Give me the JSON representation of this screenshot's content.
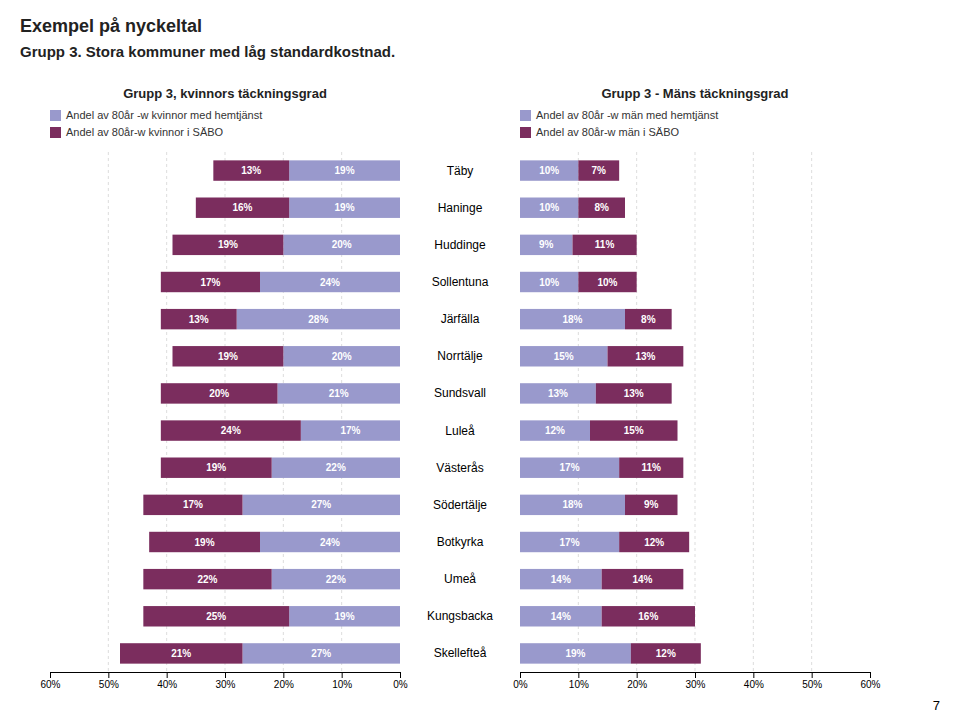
{
  "title": "Exempel på nyckeltal",
  "subtitle": "Grupp 3. Stora kommuner med låg standardkostnad.",
  "annotations": [
    "7"
  ],
  "chart_data": [
    {
      "type": "bar",
      "orientation": "horizontal",
      "stacked": true,
      "data_labels": true,
      "grid": true,
      "title": "Grupp 3, kvinnors täckningsgrad",
      "categories": [
        "Täby",
        "Haninge",
        "Huddinge",
        "Sollentuna",
        "Järfälla",
        "Norrtälje",
        "Sundsvall",
        "Luleå",
        "Västerås",
        "Södertälje",
        "Botkyrka",
        "Umeå",
        "Kungsbacka",
        "Skellefteå"
      ],
      "series": [
        {
          "name": "Andel av 80år -w kvinnor med hemtjänst",
          "color": "#9999cc",
          "values": [
            19,
            19,
            20,
            24,
            28,
            20,
            21,
            17,
            22,
            27,
            24,
            22,
            19,
            27
          ],
          "value_labels": [
            "19%",
            "19%",
            "20%",
            "24%",
            "28%",
            "20%",
            "21%",
            "17%",
            "22%",
            "27%",
            "24%",
            "22%",
            "19%",
            "27%"
          ]
        },
        {
          "name": "Andel av 80år-w  kvinnor i SÄBO",
          "color": "#7b2d5e",
          "values": [
            13,
            16,
            19,
            17,
            13,
            19,
            20,
            24,
            19,
            17,
            19,
            22,
            25,
            21
          ],
          "value_labels": [
            "13%",
            "16%",
            "19%",
            "17%",
            "13%",
            "19%",
            "20%",
            "24%",
            "19%",
            "17%",
            "19%",
            "22%",
            "25%",
            "21%"
          ]
        }
      ],
      "xlim": [
        60,
        0
      ],
      "xticks": [
        {
          "value": 0,
          "label": "0%"
        },
        {
          "value": 10,
          "label": "10%"
        },
        {
          "value": 20,
          "label": "20%"
        },
        {
          "value": 30,
          "label": "30%"
        },
        {
          "value": 40,
          "label": "40%"
        },
        {
          "value": 50,
          "label": "50%"
        },
        {
          "value": 60,
          "label": "60%"
        }
      ]
    },
    {
      "type": "bar",
      "orientation": "horizontal",
      "stacked": true,
      "data_labels": true,
      "grid": true,
      "title": "Grupp 3 -  Mäns täckningsgrad",
      "categories": [
        "Täby",
        "Haninge",
        "Huddinge",
        "Sollentuna",
        "Järfälla",
        "Norrtälje",
        "Sundsvall",
        "Luleå",
        "Västerås",
        "Södertälje",
        "Botkyrka",
        "Umeå",
        "Kungsbacka",
        "Skellefteå"
      ],
      "series": [
        {
          "name": "Andel av 80år -w män med hemtjänst",
          "color": "#9999cc",
          "values": [
            10,
            10,
            9,
            10,
            18,
            15,
            13,
            12,
            17,
            18,
            17,
            14,
            14,
            19
          ],
          "value_labels": [
            "10%",
            "10%",
            "9%",
            "10%",
            "18%",
            "15%",
            "13%",
            "12%",
            "17%",
            "18%",
            "17%",
            "14%",
            "14%",
            "19%"
          ]
        },
        {
          "name": "Andel av 80år-w  män i SÄBO",
          "color": "#7b2d5e",
          "values": [
            7,
            8,
            11,
            10,
            8,
            13,
            13,
            15,
            11,
            9,
            12,
            14,
            16,
            12
          ],
          "value_labels": [
            "7%",
            "8%",
            "11%",
            "10%",
            "8%",
            "13%",
            "13%",
            "15%",
            "11%",
            "9%",
            "12%",
            "14%",
            "16%",
            "12%"
          ]
        }
      ],
      "xlim": [
        0,
        60
      ],
      "xticks": [
        {
          "value": 0,
          "label": "0%"
        },
        {
          "value": 10,
          "label": "10%"
        },
        {
          "value": 20,
          "label": "20%"
        },
        {
          "value": 30,
          "label": "30%"
        },
        {
          "value": 40,
          "label": "40%"
        },
        {
          "value": 50,
          "label": "50%"
        },
        {
          "value": 60,
          "label": "60%"
        }
      ]
    }
  ]
}
